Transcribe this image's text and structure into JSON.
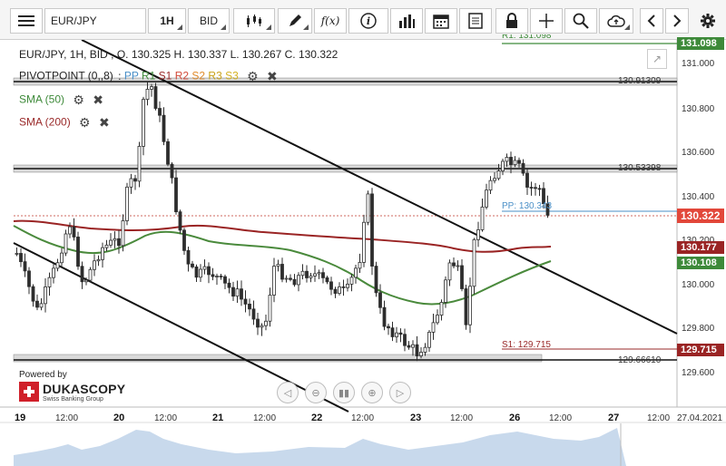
{
  "toolbar": {
    "symbol": "EUR/JPY",
    "timeframe": "1H",
    "side": "BID",
    "fx_label": "f(x)"
  },
  "legend": {
    "symbol_line": "EUR/JPY, 1H, BID , O. 130.325 H. 130.337 L. 130.267 C. 130.322",
    "pivot_name": "PIVOTPOINT (0,,8)",
    "pivot_sep": ":",
    "pivot_items": [
      "PP",
      "R1",
      "S1",
      "R2",
      "S2",
      "R3",
      "S3"
    ],
    "sma50": "SMA (50)",
    "sma200": "SMA (200)"
  },
  "colors": {
    "candle": "#2d2d2d",
    "sma50": "#4a8a3c",
    "sma200": "#9a2424",
    "pp": "#4a8fc7",
    "r1": "#3e8a3a",
    "s1": "#9a2a2a",
    "r2": "#d24a3a",
    "s2": "#e08a2a",
    "r3": "#c9a11a",
    "s3": "#d4b020"
  },
  "price_axis": {
    "ticks": [
      "131.000",
      "130.800",
      "130.600",
      "130.400",
      "130.200",
      "130.000",
      "129.800",
      "129.600"
    ]
  },
  "tags": {
    "top": "131.098",
    "current": "130.322",
    "sma200": "130.177",
    "sma50": "130.108",
    "s1": "129.715"
  },
  "lines": {
    "hline1": "130.91309",
    "hline2": "130.53398",
    "hline3": "129.66610",
    "pp": "PP: 130.343",
    "s1": "S1: 129.715",
    "r1_partial": "R1: 131.098"
  },
  "time_axis": {
    "labels": [
      "19",
      "12:00",
      "20",
      "12:00",
      "21",
      "12:00",
      "22",
      "12:00",
      "23",
      "12:00",
      "26",
      "12:00",
      "27",
      "12:00",
      "27.04.2021"
    ]
  },
  "branding": {
    "powered": "Powered by",
    "name": "DUKASCOPY",
    "tagline": "Swiss Banking Group"
  }
}
